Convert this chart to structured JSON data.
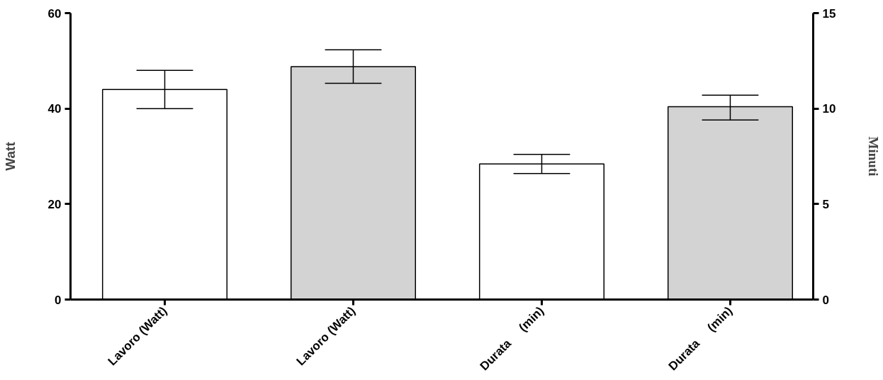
{
  "chart_data": {
    "type": "bar",
    "categories": [
      "Lavoro (Watt)",
      "Lavoro (Watt)",
      "Durata     (min)",
      "Durata     (min)"
    ],
    "series": [
      {
        "axis": "y",
        "colors": [
          "#ffffff",
          "#d3d3d3",
          "#ffffff",
          "#d3d3d3"
        ],
        "values": [
          44,
          48.8,
          null,
          null
        ],
        "errors": [
          4,
          3.5,
          null,
          null
        ]
      },
      {
        "axis": "y2",
        "colors": [
          "#ffffff",
          "#d3d3d3",
          "#ffffff",
          "#d3d3d3"
        ],
        "values": [
          null,
          null,
          7.1,
          10.1
        ],
        "errors": [
          null,
          null,
          0.5,
          [
            9.4,
            10.7
          ]
        ]
      }
    ],
    "ylabel": "Watt",
    "y2label": "Minuti",
    "ylim": [
      0,
      60
    ],
    "yticks": [
      0,
      20,
      40,
      60
    ],
    "y2lim": [
      0,
      15
    ],
    "y2ticks": [
      0,
      5,
      10,
      15
    ],
    "grid": false
  }
}
